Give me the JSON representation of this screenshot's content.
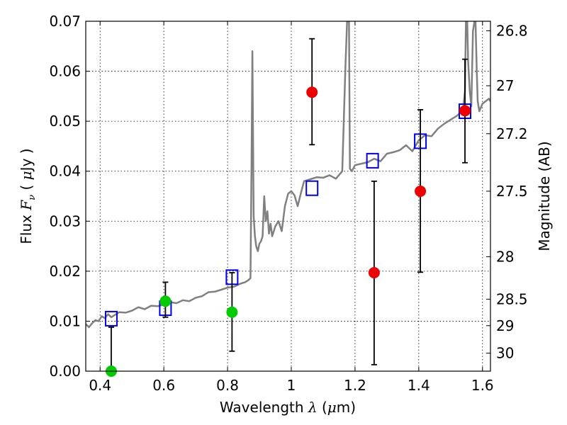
{
  "chart_data": {
    "type": "scatter",
    "xlabel": {
      "pre": "Wavelength  ",
      "sym": "λ",
      "post": " (",
      "unit_sym": "μ",
      "unit_post": "m)"
    },
    "ylabel": {
      "pre": "Flux  ",
      "sym": "F",
      "sub": "ν",
      "post": "  (  ",
      "unit_sym": "μ",
      "unit_post": "Jy  )"
    },
    "y2label": "Magnitude (AB)",
    "xlim": [
      0.355,
      1.625
    ],
    "ylim": [
      0,
      0.07
    ],
    "grid": true,
    "x_ticks": [
      {
        "v": 0.4,
        "label": "0.4"
      },
      {
        "v": 0.6,
        "label": "0.6"
      },
      {
        "v": 0.8,
        "label": "0.8"
      },
      {
        "v": 1.0,
        "label": "1"
      },
      {
        "v": 1.2,
        "label": "1.2"
      },
      {
        "v": 1.4,
        "label": "1.4"
      },
      {
        "v": 1.6,
        "label": "1.6"
      }
    ],
    "y_ticks": [
      {
        "v": 0.0,
        "label": "0.00"
      },
      {
        "v": 0.01,
        "label": "0.01"
      },
      {
        "v": 0.02,
        "label": "0.02"
      },
      {
        "v": 0.03,
        "label": "0.03"
      },
      {
        "v": 0.04,
        "label": "0.04"
      },
      {
        "v": 0.05,
        "label": "0.05"
      },
      {
        "v": 0.06,
        "label": "0.06"
      },
      {
        "v": 0.07,
        "label": "0.07"
      }
    ],
    "y2_ticks": [
      {
        "flux": 0.0681,
        "label": "26.8"
      },
      {
        "flux": 0.0571,
        "label": "27"
      },
      {
        "flux": 0.0475,
        "label": "27.2"
      },
      {
        "flux": 0.036,
        "label": "27.5"
      },
      {
        "flux": 0.0229,
        "label": "28"
      },
      {
        "flux": 0.0144,
        "label": "28.5"
      },
      {
        "flux": 0.0091,
        "label": "29"
      },
      {
        "flux": 0.0036,
        "label": "30"
      }
    ],
    "series": [
      {
        "kind": "model_spectrum",
        "color": "#808080",
        "x": [
          0.355,
          0.365,
          0.375,
          0.385,
          0.395,
          0.405,
          0.415,
          0.425,
          0.435,
          0.445,
          0.46,
          0.48,
          0.5,
          0.52,
          0.54,
          0.56,
          0.58,
          0.6,
          0.62,
          0.64,
          0.66,
          0.68,
          0.7,
          0.72,
          0.74,
          0.76,
          0.78,
          0.8,
          0.82,
          0.84,
          0.855,
          0.865,
          0.872,
          0.875,
          0.878,
          0.882,
          0.886,
          0.89,
          0.895,
          0.9,
          0.905,
          0.91,
          0.915,
          0.92,
          0.925,
          0.93,
          0.935,
          0.94,
          0.95,
          0.96,
          0.97,
          0.98,
          0.99,
          1.0,
          1.01,
          1.02,
          1.03,
          1.04,
          1.06,
          1.08,
          1.1,
          1.12,
          1.14,
          1.16,
          1.17,
          1.175,
          1.178,
          1.181,
          1.184,
          1.19,
          1.2,
          1.22,
          1.24,
          1.26,
          1.28,
          1.3,
          1.32,
          1.34,
          1.36,
          1.38,
          1.4,
          1.42,
          1.44,
          1.46,
          1.48,
          1.5,
          1.52,
          1.535,
          1.54,
          1.545,
          1.548,
          1.552,
          1.555,
          1.56,
          1.565,
          1.57,
          1.575,
          1.578,
          1.582,
          1.585,
          1.59,
          1.6,
          1.61,
          1.62,
          1.625
        ],
        "y": [
          0.0094,
          0.0088,
          0.0096,
          0.0102,
          0.01,
          0.011,
          0.0106,
          0.0114,
          0.0108,
          0.0112,
          0.0118,
          0.0117,
          0.0121,
          0.0128,
          0.0124,
          0.0131,
          0.013,
          0.0133,
          0.0138,
          0.0136,
          0.0142,
          0.014,
          0.0147,
          0.015,
          0.0158,
          0.0159,
          0.0163,
          0.0167,
          0.0169,
          0.0175,
          0.0178,
          0.0182,
          0.0186,
          0.04,
          0.064,
          0.031,
          0.027,
          0.025,
          0.024,
          0.0255,
          0.026,
          0.027,
          0.035,
          0.03,
          0.032,
          0.0275,
          0.0295,
          0.027,
          0.029,
          0.03,
          0.028,
          0.033,
          0.0355,
          0.036,
          0.0352,
          0.033,
          0.0356,
          0.038,
          0.0384,
          0.0388,
          0.0387,
          0.0392,
          0.0385,
          0.04,
          0.061,
          0.07,
          0.07,
          0.07,
          0.0405,
          0.04,
          0.0412,
          0.0415,
          0.0418,
          0.0425,
          0.042,
          0.0435,
          0.0438,
          0.0442,
          0.0452,
          0.044,
          0.0462,
          0.0472,
          0.047,
          0.0485,
          0.0495,
          0.0503,
          0.0511,
          0.052,
          0.053,
          0.056,
          0.07,
          0.07,
          0.062,
          0.056,
          0.053,
          0.068,
          0.07,
          0.07,
          0.06,
          0.054,
          0.052,
          0.0535,
          0.054,
          0.0545,
          0.054
        ]
      },
      {
        "kind": "model_boxes",
        "marker": "square",
        "color": "#0000ee",
        "points": [
          {
            "x": 0.435,
            "y": 0.0105
          },
          {
            "x": 0.605,
            "y": 0.0126
          },
          {
            "x": 0.814,
            "y": 0.0188
          },
          {
            "x": 1.065,
            "y": 0.0366
          },
          {
            "x": 1.255,
            "y": 0.0421
          },
          {
            "x": 1.405,
            "y": 0.046
          },
          {
            "x": 1.545,
            "y": 0.052
          }
        ]
      },
      {
        "kind": "observed_green",
        "marker": "circle",
        "color": "#00cc00",
        "points": [
          {
            "x": 0.435,
            "y": 0.0,
            "lo": 0.0,
            "hi": 0.0088
          },
          {
            "x": 0.605,
            "y": 0.014,
            "lo": 0.0108,
            "hi": 0.0178
          },
          {
            "x": 0.814,
            "y": 0.0118,
            "lo": 0.004,
            "hi": 0.0197
          }
        ]
      },
      {
        "kind": "observed_red",
        "marker": "circle",
        "color": "#ee0000",
        "points": [
          {
            "x": 1.065,
            "y": 0.0558,
            "lo": 0.0453,
            "hi": 0.0665
          },
          {
            "x": 1.26,
            "y": 0.0197,
            "lo": 0.0013,
            "hi": 0.038
          },
          {
            "x": 1.405,
            "y": 0.036,
            "lo": 0.0198,
            "hi": 0.0523
          },
          {
            "x": 1.545,
            "y": 0.0521,
            "lo": 0.0417,
            "hi": 0.0624
          }
        ]
      }
    ]
  }
}
